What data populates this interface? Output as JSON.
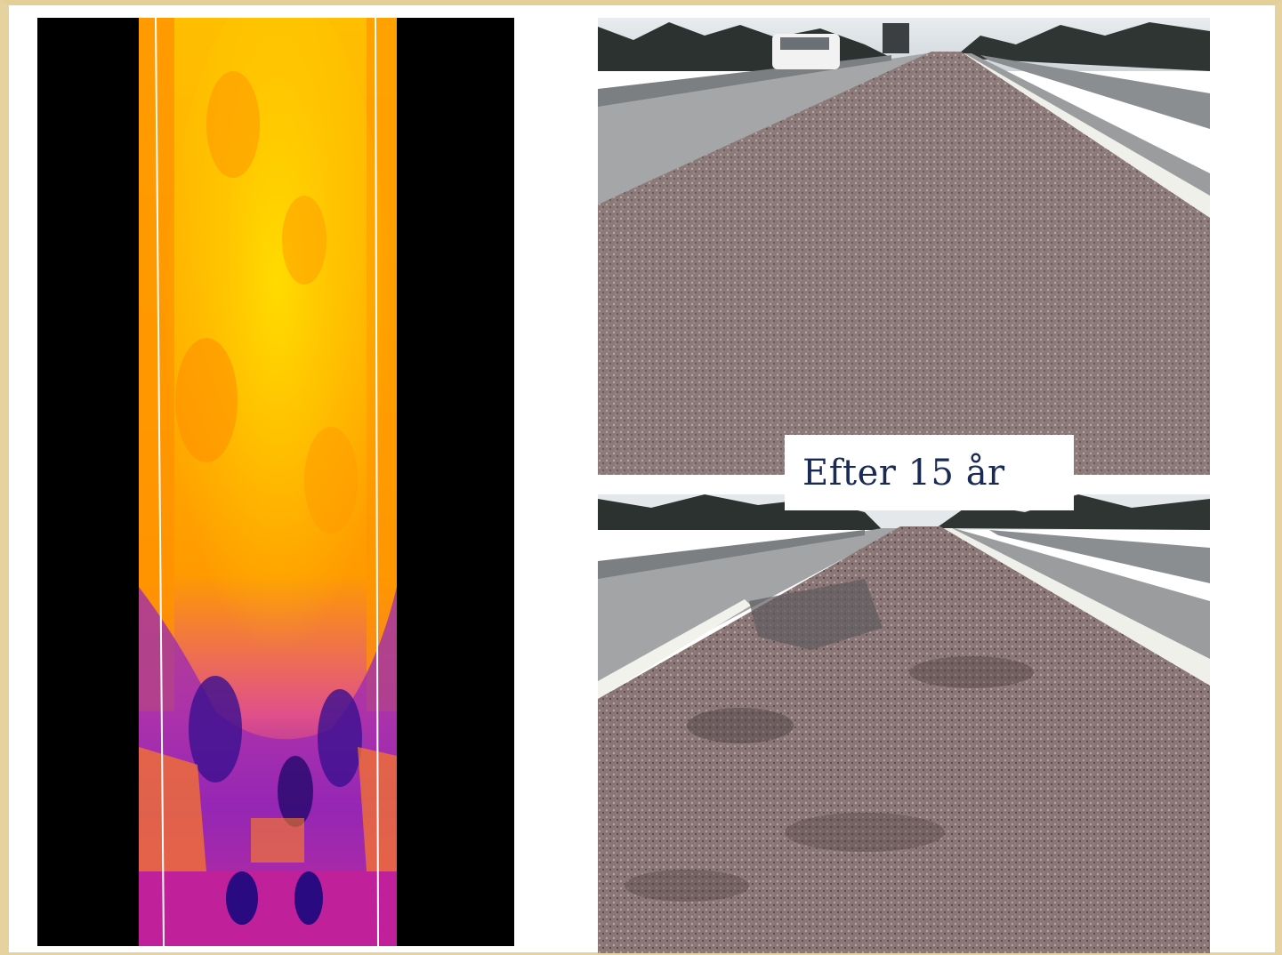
{
  "caption": {
    "text": "Efter 15 år",
    "text_color": "#1a2a55"
  },
  "colors": {
    "thermal_bg": "#000000",
    "thermal_hot": "#ffc000",
    "thermal_warm": "#ff8a00",
    "thermal_cool": "#b0188f",
    "thermal_cold": "#2a0a80",
    "asphalt": "#8e7c7c",
    "frame": "#e6d29f"
  }
}
